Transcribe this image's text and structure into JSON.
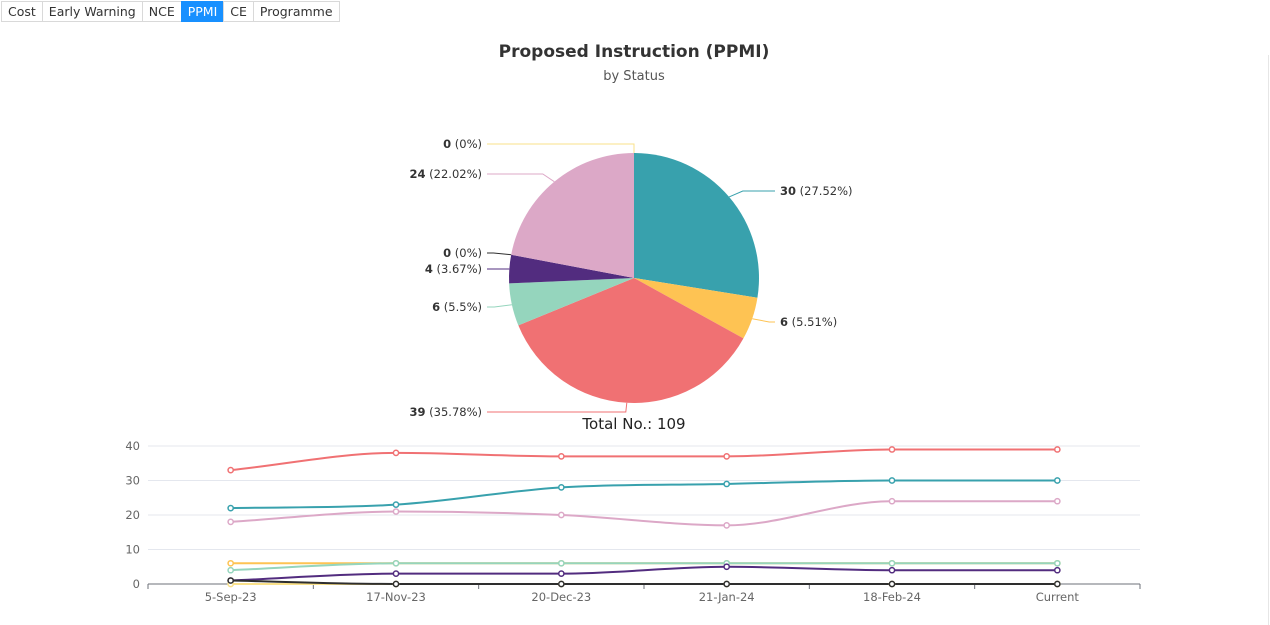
{
  "tabs": [
    {
      "label": "Cost",
      "active": false
    },
    {
      "label": "Early Warning",
      "active": false
    },
    {
      "label": "NCE",
      "active": false
    },
    {
      "label": "PPMI",
      "active": true
    },
    {
      "label": "CE",
      "active": false
    },
    {
      "label": "Programme",
      "active": false
    }
  ],
  "chart_data": [
    {
      "type": "pie",
      "title": "Proposed Instruction (PPMI)",
      "subtitle": "by Status",
      "total_label": "Total No.: 109",
      "slices": [
        {
          "value": 30,
          "percent": "27.52%",
          "color": "#38a1ad"
        },
        {
          "value": 6,
          "percent": "5.51%",
          "color": "#fec353"
        },
        {
          "value": 39,
          "percent": "35.78%",
          "color": "#f07173"
        },
        {
          "value": 6,
          "percent": "5.5%",
          "color": "#95d5bd"
        },
        {
          "value": 4,
          "percent": "3.67%",
          "color": "#522c7f"
        },
        {
          "value": 0,
          "percent": "0%",
          "color": "#2e2e2e"
        },
        {
          "value": 24,
          "percent": "22.02%",
          "color": "#dca8c7"
        },
        {
          "value": 0,
          "percent": "0%",
          "color": "#fae18a"
        }
      ]
    },
    {
      "type": "line",
      "categories": [
        "5-Sep-23",
        "17-Nov-23",
        "20-Dec-23",
        "21-Jan-24",
        "18-Feb-24",
        "Current"
      ],
      "ylim": [
        0,
        40
      ],
      "yticks": [
        "0",
        "10",
        "20",
        "30",
        "40"
      ],
      "grid": true,
      "smooth": true,
      "series": [
        {
          "color": "#f07173",
          "values": [
            33,
            38,
            37,
            37,
            39,
            39
          ]
        },
        {
          "color": "#38a1ad",
          "values": [
            22,
            23,
            28,
            29,
            30,
            30
          ]
        },
        {
          "color": "#dca8c7",
          "values": [
            18,
            21,
            20,
            17,
            24,
            24
          ]
        },
        {
          "color": "#fec353",
          "values": [
            6,
            6,
            6,
            6,
            6,
            6
          ]
        },
        {
          "color": "#95d5bd",
          "values": [
            4,
            6,
            6,
            6,
            6,
            6
          ]
        },
        {
          "color": "#522c7f",
          "values": [
            1,
            3,
            3,
            5,
            4,
            4
          ]
        },
        {
          "color": "#fae18a",
          "values": [
            0,
            0,
            0,
            0,
            0,
            0
          ]
        },
        {
          "color": "#2e2e2e",
          "values": [
            1,
            0,
            0,
            0,
            0,
            0
          ]
        }
      ]
    }
  ]
}
